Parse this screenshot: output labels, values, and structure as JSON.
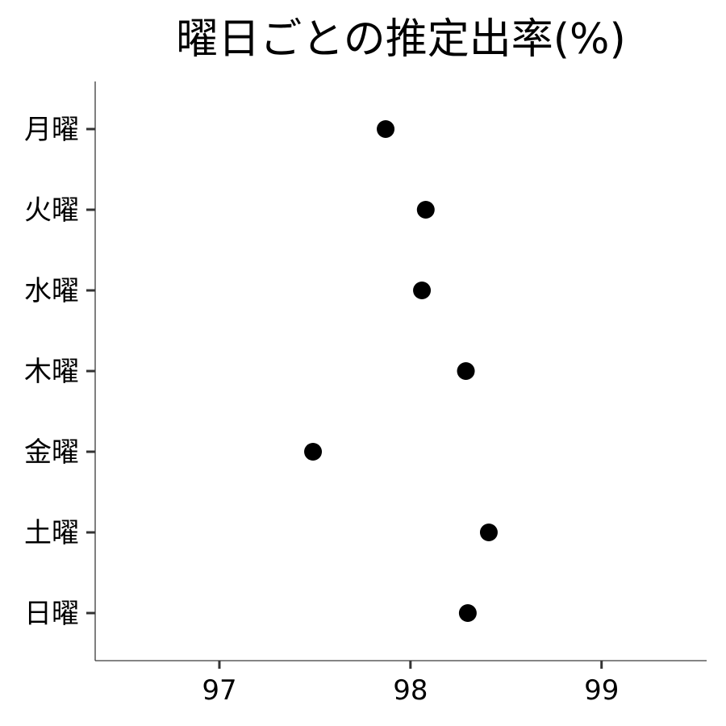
{
  "chart_data": {
    "type": "scatter",
    "title": "曜日ごとの推定出率(%)",
    "xlabel": "",
    "ylabel": "",
    "categories": [
      "月曜",
      "火曜",
      "水曜",
      "木曜",
      "金曜",
      "土曜",
      "日曜"
    ],
    "values": [
      97.87,
      98.08,
      98.06,
      98.29,
      97.49,
      98.41,
      98.3
    ],
    "xlim": [
      96.35,
      99.55
    ],
    "xticks": [
      97,
      98,
      99
    ],
    "xtick_labels": [
      "97",
      "98",
      "99"
    ],
    "grid": false,
    "legend": "none",
    "point_color": "#000000"
  }
}
